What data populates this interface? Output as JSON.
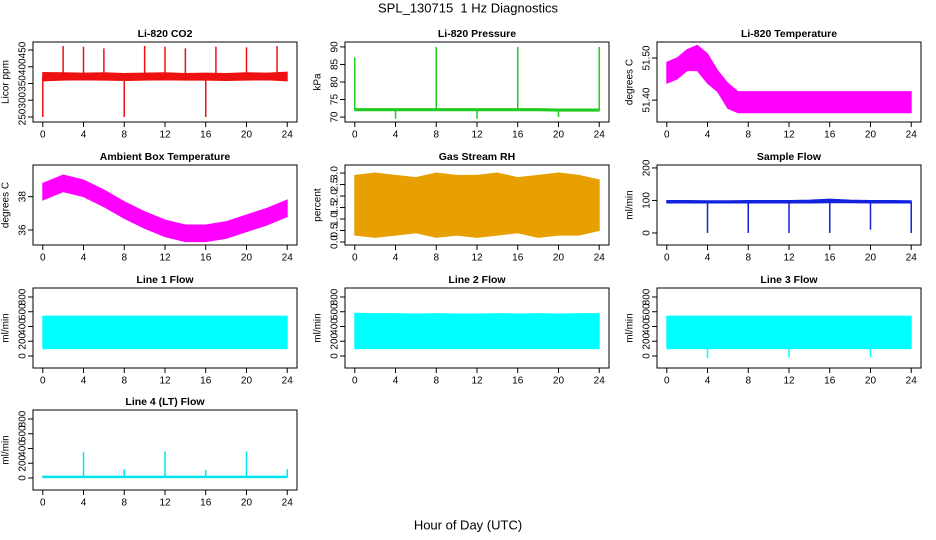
{
  "title": "SPL_130715  1 Hz Diagnostics",
  "xlabel": "Hour of Day (UTC)",
  "chart_data": [
    {
      "type": "band",
      "title": "Li-820 CO2",
      "ylabel": "Licor ppm",
      "color": "#ee1111",
      "x": [
        0,
        2,
        4,
        6,
        8,
        10,
        12,
        14,
        16,
        18,
        20,
        22,
        24
      ],
      "low": [
        358,
        360,
        361,
        360,
        359,
        360,
        361,
        360,
        360,
        359,
        360,
        361,
        358
      ],
      "high": [
        383,
        382,
        381,
        382,
        380,
        381,
        382,
        380,
        381,
        380,
        382,
        381,
        384
      ],
      "spikes": [
        {
          "x": 0,
          "value": 250
        },
        {
          "x": 2,
          "value": 462
        },
        {
          "x": 4,
          "value": 460
        },
        {
          "x": 6,
          "value": 455
        },
        {
          "x": 8,
          "value": 250
        },
        {
          "x": 10,
          "value": 462
        },
        {
          "x": 12,
          "value": 460
        },
        {
          "x": 14,
          "value": 455
        },
        {
          "x": 16,
          "value": 250
        },
        {
          "x": 17,
          "value": 460
        },
        {
          "x": 20,
          "value": 458
        },
        {
          "x": 23,
          "value": 462
        }
      ],
      "xlim": [
        -0.96,
        24.96
      ],
      "xticks": [
        0,
        4,
        8,
        12,
        16,
        20,
        24
      ],
      "ylim": [
        235,
        474
      ],
      "yticks": [
        250,
        300,
        350,
        400,
        450
      ]
    },
    {
      "type": "band",
      "title": "Li-820 Pressure",
      "ylabel": "kPa",
      "color": "#22cc22",
      "x": [
        0,
        2,
        4,
        6,
        8,
        10,
        12,
        14,
        16,
        18,
        20,
        22,
        24
      ],
      "low": [
        71.8,
        71.8,
        71.8,
        71.8,
        71.8,
        71.8,
        71.8,
        71.8,
        71.8,
        71.8,
        71.7,
        71.7,
        71.7
      ],
      "high": [
        72.4,
        72.4,
        72.4,
        72.4,
        72.4,
        72.4,
        72.4,
        72.4,
        72.4,
        72.4,
        72.3,
        72.3,
        72.3
      ],
      "spikes": [
        {
          "x": 0,
          "value": 87
        },
        {
          "x": 4,
          "value": 69.5
        },
        {
          "x": 8,
          "value": 90
        },
        {
          "x": 12,
          "value": 69.5
        },
        {
          "x": 16,
          "value": 90
        },
        {
          "x": 20,
          "value": 70
        },
        {
          "x": 24,
          "value": 90
        }
      ],
      "xlim": [
        -0.96,
        24.96
      ],
      "xticks": [
        0,
        4,
        8,
        12,
        16,
        20,
        24
      ],
      "ylim": [
        68.6,
        91.4
      ],
      "yticks": [
        70,
        75,
        80,
        85,
        90
      ]
    },
    {
      "type": "band",
      "title": "Li-820 Temperature",
      "ylabel": "degrees C",
      "color": "#ff00ff",
      "x": [
        0,
        1,
        2,
        3,
        4,
        5,
        6,
        7,
        8,
        9,
        10,
        11,
        12,
        13,
        14,
        15,
        16,
        17,
        18,
        19,
        20,
        21,
        22,
        23,
        24
      ],
      "low": [
        51.44,
        51.45,
        51.47,
        51.47,
        51.44,
        51.42,
        51.38,
        51.37,
        51.37,
        51.37,
        51.37,
        51.37,
        51.37,
        51.37,
        51.37,
        51.37,
        51.37,
        51.37,
        51.37,
        51.37,
        51.37,
        51.37,
        51.37,
        51.37,
        51.37
      ],
      "high": [
        51.49,
        51.5,
        51.52,
        51.53,
        51.51,
        51.47,
        51.44,
        51.42,
        51.42,
        51.42,
        51.42,
        51.42,
        51.42,
        51.42,
        51.42,
        51.42,
        51.42,
        51.42,
        51.42,
        51.42,
        51.42,
        51.42,
        51.42,
        51.42,
        51.42
      ],
      "spikes": [],
      "xlim": [
        -0.96,
        24.96
      ],
      "xticks": [
        0,
        4,
        8,
        12,
        16,
        20,
        24
      ],
      "ylim": [
        51.348,
        51.538
      ],
      "yticks": [
        {
          "value": 51.4,
          "label": "51.40"
        },
        {
          "value": 51.5,
          "label": "51.50"
        }
      ]
    },
    {
      "type": "band",
      "title": "Ambient Box Temperature",
      "ylabel": "degrees C",
      "color": "#ff00ff",
      "x": [
        0,
        2,
        4,
        6,
        8,
        10,
        12,
        14,
        16,
        18,
        20,
        22,
        24
      ],
      "low": [
        37.8,
        38.3,
        38.0,
        37.4,
        36.7,
        36.1,
        35.6,
        35.3,
        35.3,
        35.5,
        35.9,
        36.3,
        36.8
      ],
      "high": [
        38.8,
        39.3,
        39.0,
        38.4,
        37.7,
        37.1,
        36.6,
        36.3,
        36.3,
        36.5,
        36.9,
        37.3,
        37.8
      ],
      "spikes": [],
      "xlim": [
        -0.96,
        24.96
      ],
      "xticks": [
        0,
        4,
        8,
        12,
        16,
        20,
        24
      ],
      "ylim": [
        35.1,
        39.9
      ],
      "yticks": [
        36,
        38
      ]
    },
    {
      "type": "band",
      "title": "Gas Stream RH",
      "ylabel": "percent",
      "color": "#e8a000",
      "x": [
        0,
        2,
        4,
        6,
        8,
        10,
        12,
        14,
        16,
        18,
        20,
        22,
        24
      ],
      "low": [
        0.3,
        0.2,
        0.3,
        0.4,
        0.2,
        0.3,
        0.2,
        0.3,
        0.4,
        0.2,
        0.3,
        0.3,
        0.5
      ],
      "high": [
        2.9,
        3.0,
        2.9,
        2.8,
        3.0,
        2.9,
        2.9,
        3.0,
        2.8,
        2.9,
        3.0,
        2.9,
        2.7
      ],
      "spikes": [],
      "xlim": [
        -0.96,
        24.96
      ],
      "xticks": [
        0,
        4,
        8,
        12,
        16,
        20,
        24
      ],
      "ylim": [
        -0.13,
        3.35
      ],
      "yticks": [
        {
          "value": 0,
          "label": "0.0"
        },
        {
          "value": 0.5,
          "label": "0.5"
        },
        {
          "value": 1,
          "label": "1.0"
        },
        {
          "value": 1.5,
          "label": "1.5"
        },
        {
          "value": 2,
          "label": "2.0"
        },
        {
          "value": 2.5,
          "label": "2.5"
        },
        {
          "value": 3,
          "label": "3.0"
        }
      ]
    },
    {
      "type": "band",
      "title": "Sample Flow",
      "ylabel": "ml/min",
      "color": "#1122dd",
      "x": [
        0,
        2,
        4,
        6,
        8,
        10,
        12,
        14,
        16,
        18,
        20,
        22,
        24
      ],
      "low": [
        92,
        92,
        92,
        92,
        92,
        92,
        92,
        92,
        93,
        93,
        92,
        92,
        92
      ],
      "high": [
        100,
        100,
        99,
        99,
        100,
        100,
        100,
        101,
        104,
        101,
        100,
        100,
        99
      ],
      "spikes": [
        {
          "x": 4,
          "value": 0
        },
        {
          "x": 8,
          "value": 0
        },
        {
          "x": 12,
          "value": 0
        },
        {
          "x": 16,
          "value": 0
        },
        {
          "x": 20,
          "value": 10
        },
        {
          "x": 24,
          "value": 0
        }
      ],
      "xlim": [
        -0.96,
        24.96
      ],
      "xticks": [
        0,
        4,
        8,
        12,
        16,
        20,
        24
      ],
      "ylim": [
        -37,
        209
      ],
      "yticks": [
        0,
        100,
        200
      ]
    },
    {
      "type": "band",
      "title": "Line 1 Flow",
      "ylabel": "ml/min",
      "color": "#00ffff",
      "x": [
        0,
        2,
        4,
        6,
        8,
        10,
        12,
        14,
        16,
        18,
        20,
        22,
        24
      ],
      "low": [
        100,
        100,
        100,
        100,
        100,
        100,
        100,
        100,
        100,
        100,
        100,
        100,
        100
      ],
      "high": [
        540,
        540,
        540,
        540,
        540,
        540,
        540,
        540,
        540,
        540,
        540,
        540,
        540
      ],
      "spikes": [],
      "xlim": [
        -0.96,
        24.96
      ],
      "xticks": [
        0,
        4,
        8,
        12,
        16,
        20,
        24
      ],
      "ylim": [
        -163,
        922
      ],
      "yticks": [
        0,
        200,
        400,
        600,
        800
      ]
    },
    {
      "type": "band",
      "title": "Line 2 Flow",
      "ylabel": "ml/min",
      "color": "#00ffff",
      "x": [
        0,
        2,
        4,
        6,
        8,
        10,
        12,
        14,
        16,
        18,
        20,
        22,
        24
      ],
      "low": [
        100,
        100,
        100,
        100,
        100,
        100,
        100,
        100,
        100,
        100,
        100,
        100,
        100
      ],
      "high": [
        580,
        575,
        575,
        570,
        575,
        570,
        570,
        575,
        570,
        575,
        570,
        575,
        575
      ],
      "spikes": [],
      "xlim": [
        -0.96,
        24.96
      ],
      "xticks": [
        0,
        4,
        8,
        12,
        16,
        20,
        24
      ],
      "ylim": [
        -163,
        922
      ],
      "yticks": [
        0,
        200,
        400,
        600,
        800
      ]
    },
    {
      "type": "band",
      "title": "Line 3 Flow",
      "ylabel": "ml/min",
      "color": "#00ffff",
      "x": [
        0,
        2,
        4,
        6,
        8,
        10,
        12,
        14,
        16,
        18,
        20,
        22,
        24
      ],
      "low": [
        100,
        100,
        100,
        100,
        100,
        100,
        100,
        100,
        100,
        100,
        100,
        100,
        100
      ],
      "high": [
        540,
        540,
        540,
        540,
        540,
        540,
        540,
        540,
        540,
        540,
        540,
        540,
        540
      ],
      "spikes": [
        {
          "x": 4,
          "value": -30
        },
        {
          "x": 12,
          "value": -20
        },
        {
          "x": 20,
          "value": -20
        }
      ],
      "xlim": [
        -0.96,
        24.96
      ],
      "xticks": [
        0,
        4,
        8,
        12,
        16,
        20,
        24
      ],
      "ylim": [
        -163,
        922
      ],
      "yticks": [
        0,
        200,
        400,
        600,
        800
      ]
    },
    {
      "type": "band",
      "title": "Line 4 (LT) Flow",
      "ylabel": "ml/min",
      "color": "#00e5ee",
      "x": [
        0,
        2,
        4,
        6,
        8,
        10,
        12,
        14,
        16,
        18,
        20,
        22,
        24
      ],
      "low": [
        5,
        5,
        5,
        5,
        5,
        5,
        5,
        5,
        5,
        5,
        5,
        5,
        5
      ],
      "high": [
        25,
        25,
        25,
        25,
        25,
        25,
        25,
        25,
        25,
        25,
        25,
        25,
        25
      ],
      "spikes": [
        {
          "x": 4,
          "value": 350
        },
        {
          "x": 8,
          "value": 120
        },
        {
          "x": 12,
          "value": 360
        },
        {
          "x": 16,
          "value": 110
        },
        {
          "x": 20,
          "value": 360
        },
        {
          "x": 24,
          "value": 120
        }
      ],
      "xlim": [
        -0.96,
        24.96
      ],
      "xticks": [
        0,
        4,
        8,
        12,
        16,
        20,
        24
      ],
      "ylim": [
        -163,
        922
      ],
      "yticks": [
        0,
        200,
        400,
        600,
        800
      ]
    }
  ]
}
